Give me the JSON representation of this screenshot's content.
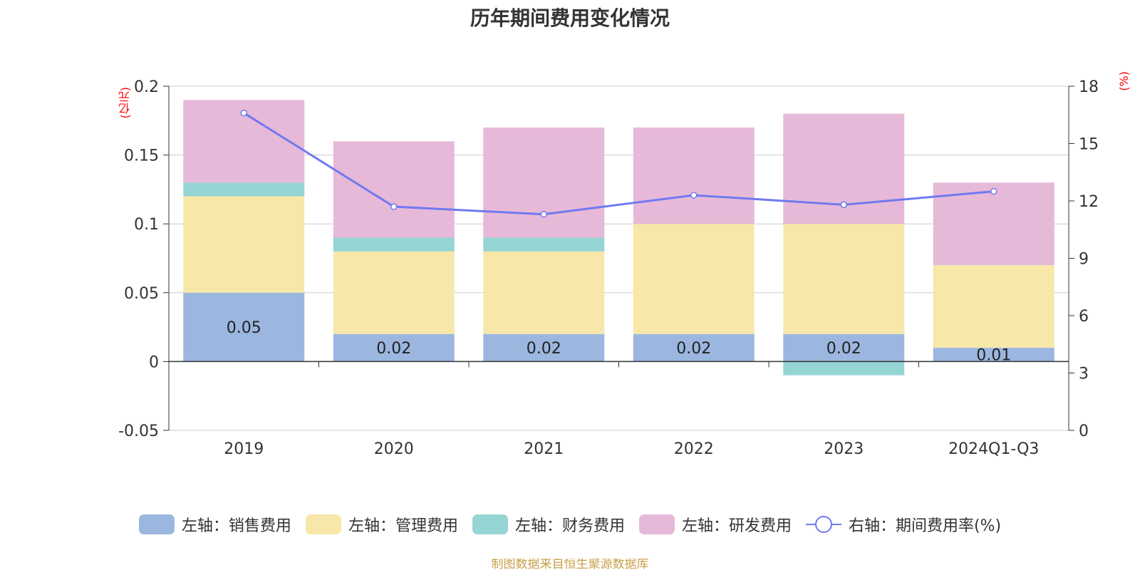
{
  "title": "历年期间费用变化情况",
  "left_unit": "(亿元)",
  "right_unit": "(%)",
  "footer": "制图数据来自恒生聚源数据库",
  "colors": {
    "sales": "#9bb7e0",
    "mgmt": "#f7e8a9",
    "fin": "#95d5d4",
    "rnd": "#e7b9d8",
    "line": "#7079f0",
    "axis": "#333333",
    "grid": "#cccccc"
  },
  "legend": [
    {
      "label": "左轴：销售费用",
      "color": "#9bb7e0",
      "kind": "bar"
    },
    {
      "label": "左轴：管理费用",
      "color": "#f7e8a9",
      "kind": "bar"
    },
    {
      "label": "左轴：财务费用",
      "color": "#95d5d4",
      "kind": "bar"
    },
    {
      "label": "左轴：研发费用",
      "color": "#e7b9d8",
      "kind": "bar"
    },
    {
      "label": "右轴：期间费用率(%)",
      "color": "#7079f0",
      "kind": "line"
    }
  ],
  "chart_data": {
    "type": "bar",
    "stacked": true,
    "categories": [
      "2019",
      "2020",
      "2021",
      "2022",
      "2023",
      "2024Q1-Q3"
    ],
    "series": [
      {
        "name": "左轴：销售费用",
        "axis": "left",
        "values": [
          0.05,
          0.02,
          0.02,
          0.02,
          0.02,
          0.01
        ]
      },
      {
        "name": "左轴：管理费用",
        "axis": "left",
        "values": [
          0.07,
          0.06,
          0.06,
          0.08,
          0.08,
          0.06
        ]
      },
      {
        "name": "左轴：财务费用",
        "axis": "left",
        "values": [
          0.01,
          0.01,
          0.01,
          0.0,
          -0.01,
          0.0
        ]
      },
      {
        "name": "左轴：研发费用",
        "axis": "left",
        "values": [
          0.06,
          0.07,
          0.08,
          0.07,
          0.08,
          0.06
        ]
      },
      {
        "name": "右轴：期间费用率(%)",
        "axis": "right",
        "type": "line",
        "values": [
          16.6,
          11.7,
          11.3,
          12.3,
          11.8,
          12.5
        ]
      }
    ],
    "data_labels": [
      "0.05",
      "0.02",
      "0.02",
      "0.02",
      "0.02",
      "0.01"
    ],
    "left_axis": {
      "min": -0.05,
      "max": 0.2,
      "ticks": [
        "-0.05",
        "0",
        "0.05",
        "0.1",
        "0.15",
        "0.2"
      ]
    },
    "right_axis": {
      "min": 0,
      "max": 18,
      "ticks": [
        "0",
        "3",
        "6",
        "9",
        "12",
        "15",
        "18"
      ]
    },
    "grid": true,
    "legend_position": "bottom"
  }
}
